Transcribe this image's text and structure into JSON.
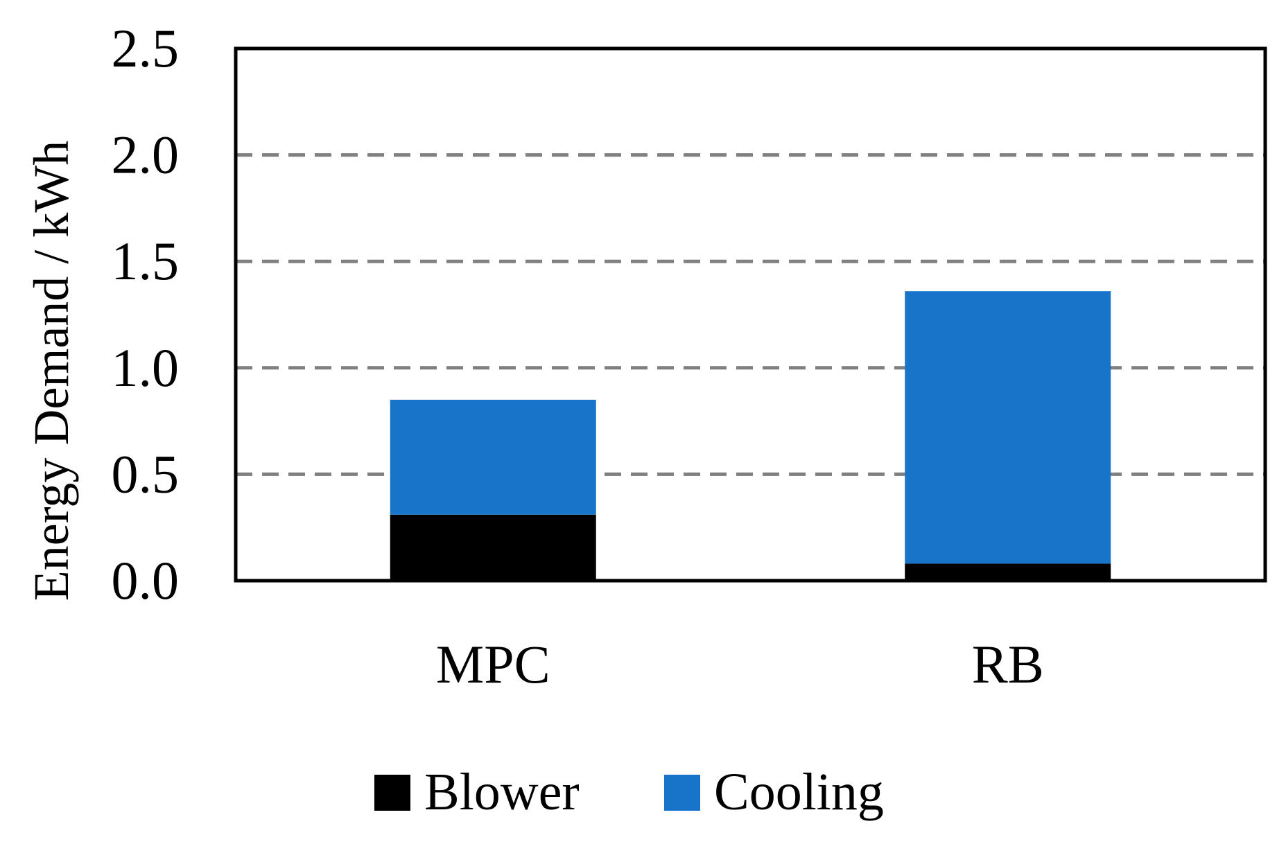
{
  "chart_data": {
    "type": "bar",
    "stacked": true,
    "categories": [
      "MPC",
      "RB"
    ],
    "series": [
      {
        "name": "Blower",
        "values": [
          0.31,
          0.08
        ],
        "color": "#000000"
      },
      {
        "name": "Cooling",
        "values": [
          0.54,
          1.28
        ],
        "color": "#1874C8"
      }
    ],
    "ylabel": "Energy Demand / kWh",
    "xlabel": "",
    "ylim": [
      0,
      2.5
    ],
    "yticks": [
      "0.0",
      "0.5",
      "1.0",
      "1.5",
      "2.0",
      "2.5"
    ],
    "grid": "horizontal dashed",
    "legend": "bottom"
  }
}
